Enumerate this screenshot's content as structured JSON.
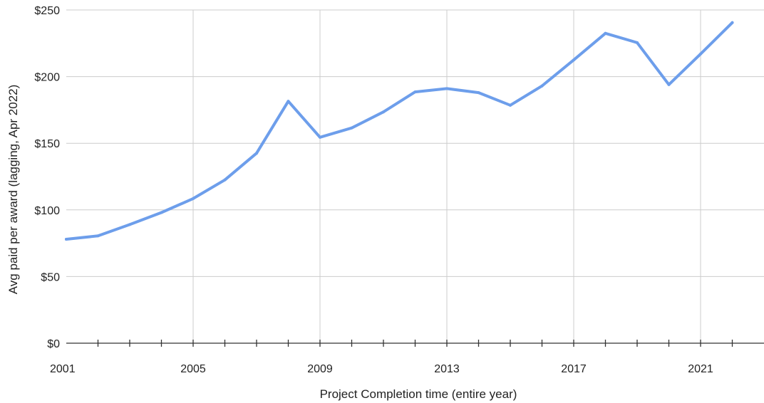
{
  "chart_data": {
    "type": "line",
    "title": "",
    "xlabel": "Project Completion time (entire year)",
    "ylabel": "Avg paid per award (lagging, Apr 2022)",
    "x": [
      2001,
      2002,
      2003,
      2004,
      2005,
      2006,
      2007,
      2008,
      2009,
      2010,
      2011,
      2012,
      2013,
      2014,
      2015,
      2016,
      2017,
      2018,
      2019,
      2020,
      2021,
      2022
    ],
    "series": [
      {
        "values": [
          78,
          80.5,
          89,
          98,
          108.5,
          122.5,
          142.5,
          181.5,
          154.5,
          161.5,
          173.5,
          188.5,
          191,
          188,
          178.5,
          193,
          212.5,
          232.5,
          225.5,
          194,
          217,
          240.5
        ],
        "color": "#6d9eeb"
      }
    ],
    "xlim": [
      2001,
      2023
    ],
    "ylim": [
      0,
      250
    ],
    "y_ticks": [
      0,
      50,
      100,
      150,
      200,
      250
    ],
    "y_tick_labels": [
      "$0",
      "$50",
      "$100",
      "$150",
      "$200",
      "$250"
    ],
    "x_label_ticks": [
      2001,
      2005,
      2009,
      2013,
      2017,
      2021
    ],
    "x_tick_labels": [
      "2001",
      "2005",
      "2009",
      "2013",
      "2017",
      "2021"
    ],
    "grid": true,
    "legend": "none",
    "colors": {
      "line": "#6d9eeb",
      "grid": "#cccccc",
      "axis": "#333333"
    }
  }
}
